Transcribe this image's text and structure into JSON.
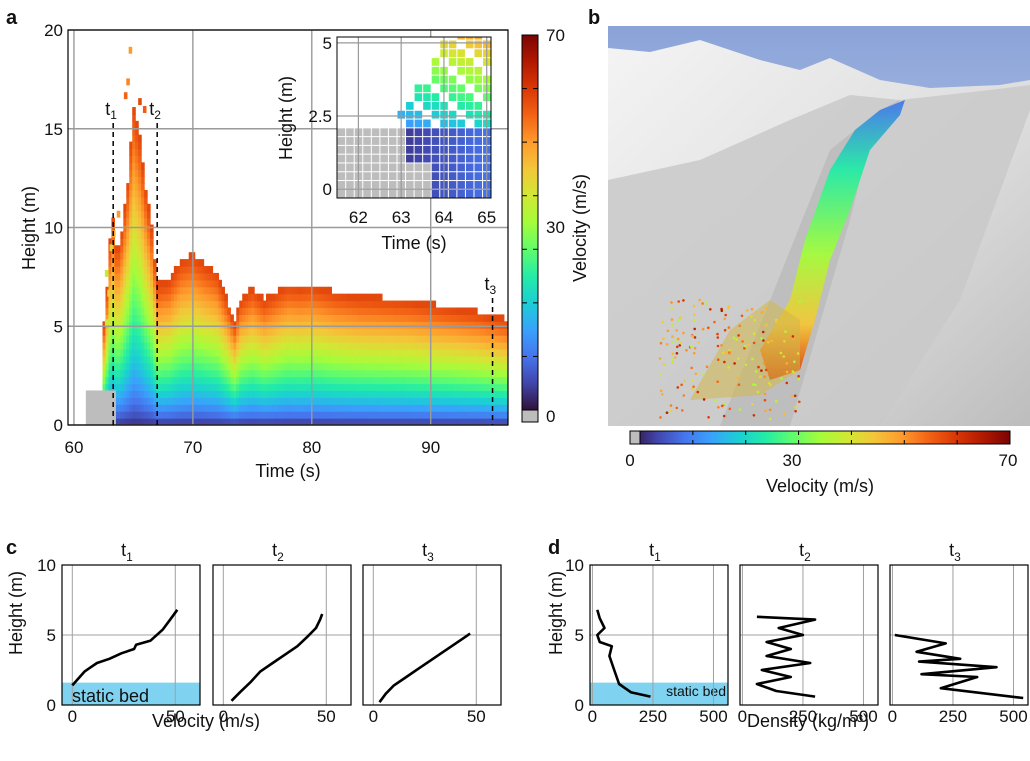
{
  "panel_letters": {
    "a": "a",
    "b": "b",
    "c": "c",
    "d": "d"
  },
  "colormap": {
    "stops": [
      "#30123b",
      "#4145ab",
      "#4675ed",
      "#39a2fc",
      "#1bcfd4",
      "#24eca6",
      "#61fc6c",
      "#a4fc3b",
      "#d1e834",
      "#f3c63a",
      "#fe9b2d",
      "#f36315",
      "#d93806",
      "#b11901",
      "#7a0403"
    ],
    "static_color": "#bdbdbd",
    "vmin": 0,
    "vmax": 70
  },
  "chart_data": [
    {
      "id": "a",
      "type": "heatmap",
      "title": "",
      "xlabel": "Time (s)",
      "ylabel": "Height (m)",
      "xlim": [
        59.5,
        96.5
      ],
      "ylim": [
        0,
        20
      ],
      "xticks": [
        60,
        70,
        80,
        90
      ],
      "yticks": [
        0,
        5,
        10,
        15,
        20
      ],
      "grid": true,
      "colorbar": {
        "label": "Velocity (m/s)",
        "ticks": [
          "0",
          "30",
          "70"
        ]
      },
      "flow_top_height": {
        "time": [
          62.6,
          63.2,
          63.6,
          64.0,
          64.5,
          65.0,
          65.5,
          66.0,
          66.5,
          67.0,
          68.0,
          69.0,
          70.0,
          71.0,
          72.0,
          73.0,
          73.5,
          74.0,
          75.0,
          76.0,
          77.0,
          78.0,
          79.0,
          80.0,
          82.0,
          84.0,
          86.0,
          88.0,
          90.0,
          92.0,
          94.0,
          96.5
        ],
        "height": [
          5.0,
          10.8,
          8.5,
          9.6,
          12.0,
          16.0,
          14.5,
          12.0,
          10.0,
          7.0,
          7.2,
          8.2,
          8.5,
          8.0,
          7.6,
          6.0,
          5.0,
          6.2,
          6.8,
          6.2,
          6.6,
          7.0,
          6.9,
          7.0,
          6.6,
          6.4,
          6.3,
          6.2,
          6.0,
          5.8,
          5.6,
          5.2
        ]
      },
      "static_bed": {
        "time": [
          61.0,
          63.4
        ],
        "height": 1.6
      },
      "events": [
        {
          "label": "t",
          "sub": "1",
          "time": 63.3
        },
        {
          "label": "t",
          "sub": "2",
          "time": 67.0
        },
        {
          "label": "t",
          "sub": "3",
          "time": 95.2
        }
      ],
      "inset": {
        "xlabel": "Time (s)",
        "ylabel": "Height (m)",
        "xlim": [
          61.5,
          65.1
        ],
        "ylim": [
          -0.3,
          5.2
        ],
        "xticks": [
          62,
          63,
          64,
          65
        ],
        "yticks": [
          "0",
          "2.5",
          "5"
        ],
        "static_bed_height": 1.85
      }
    },
    {
      "id": "b",
      "type": "image",
      "colorbar_label": "Velocity (m/s)",
      "colorbar_ticks": [
        "0",
        "30",
        "70"
      ],
      "side_label": "Velocity (m/s)"
    },
    {
      "id": "c",
      "type": "line",
      "xlabel": "Velocity (m/s)",
      "ylabel": "Height (m)",
      "xlim": [
        -5,
        62
      ],
      "ylim": [
        0,
        10
      ],
      "xticks": [
        0,
        50
      ],
      "yticks": [
        0,
        5,
        10
      ],
      "static_bed_height": 1.6,
      "static_bed_label": "static bed",
      "subplots": [
        {
          "title": "t",
          "sub": "1",
          "velocity": [
            0,
            3,
            6,
            9,
            12,
            18,
            24,
            30,
            31,
            38,
            44,
            48,
            51
          ],
          "height": [
            1.4,
            1.9,
            2.4,
            2.7,
            3.0,
            3.3,
            3.7,
            4.0,
            4.3,
            4.6,
            5.4,
            6.2,
            6.8
          ]
        },
        {
          "title": "t",
          "sub": "2",
          "velocity": [
            4,
            8,
            13,
            18,
            24,
            30,
            36,
            41,
            45,
            47,
            48
          ],
          "height": [
            0.3,
            0.9,
            1.6,
            2.4,
            3.0,
            3.6,
            4.2,
            4.9,
            5.5,
            6.1,
            6.5
          ]
        },
        {
          "title": "t",
          "sub": "3",
          "velocity": [
            3,
            6,
            10,
            16,
            22,
            28,
            34,
            40,
            45,
            47
          ],
          "height": [
            0.2,
            0.8,
            1.4,
            2.0,
            2.6,
            3.2,
            3.8,
            4.4,
            4.9,
            5.1
          ]
        }
      ]
    },
    {
      "id": "d",
      "type": "line",
      "xlabel": "Density (kg/m³)",
      "ylabel": "Height (m)",
      "xlim": [
        -10,
        560
      ],
      "ylim": [
        0,
        10
      ],
      "xticks": [
        0,
        250,
        500
      ],
      "yticks": [
        0,
        5,
        10
      ],
      "static_bed_height": 1.6,
      "static_bed_label": "static bed",
      "subplots": [
        {
          "title": "t",
          "sub": "1",
          "density": [
            20,
            30,
            50,
            20,
            30,
            80,
            70,
            90,
            110,
            160,
            240
          ],
          "height": [
            6.8,
            6.2,
            5.5,
            5.0,
            4.5,
            4.2,
            3.5,
            2.5,
            1.5,
            0.9,
            0.6
          ]
        },
        {
          "title": "t",
          "sub": "2",
          "density": [
            60,
            300,
            150,
            250,
            100,
            200,
            100,
            280,
            80,
            200,
            60,
            140,
            300
          ],
          "height": [
            6.3,
            6.1,
            5.5,
            5.0,
            4.5,
            4.0,
            3.5,
            3.0,
            2.5,
            2.0,
            1.5,
            1.0,
            0.6
          ]
        },
        {
          "title": "t",
          "sub": "3",
          "density": [
            10,
            220,
            100,
            280,
            110,
            430,
            120,
            350,
            200,
            540
          ],
          "height": [
            5.0,
            4.4,
            3.8,
            3.3,
            3.1,
            2.7,
            2.2,
            2.0,
            1.2,
            0.5
          ]
        }
      ]
    }
  ]
}
